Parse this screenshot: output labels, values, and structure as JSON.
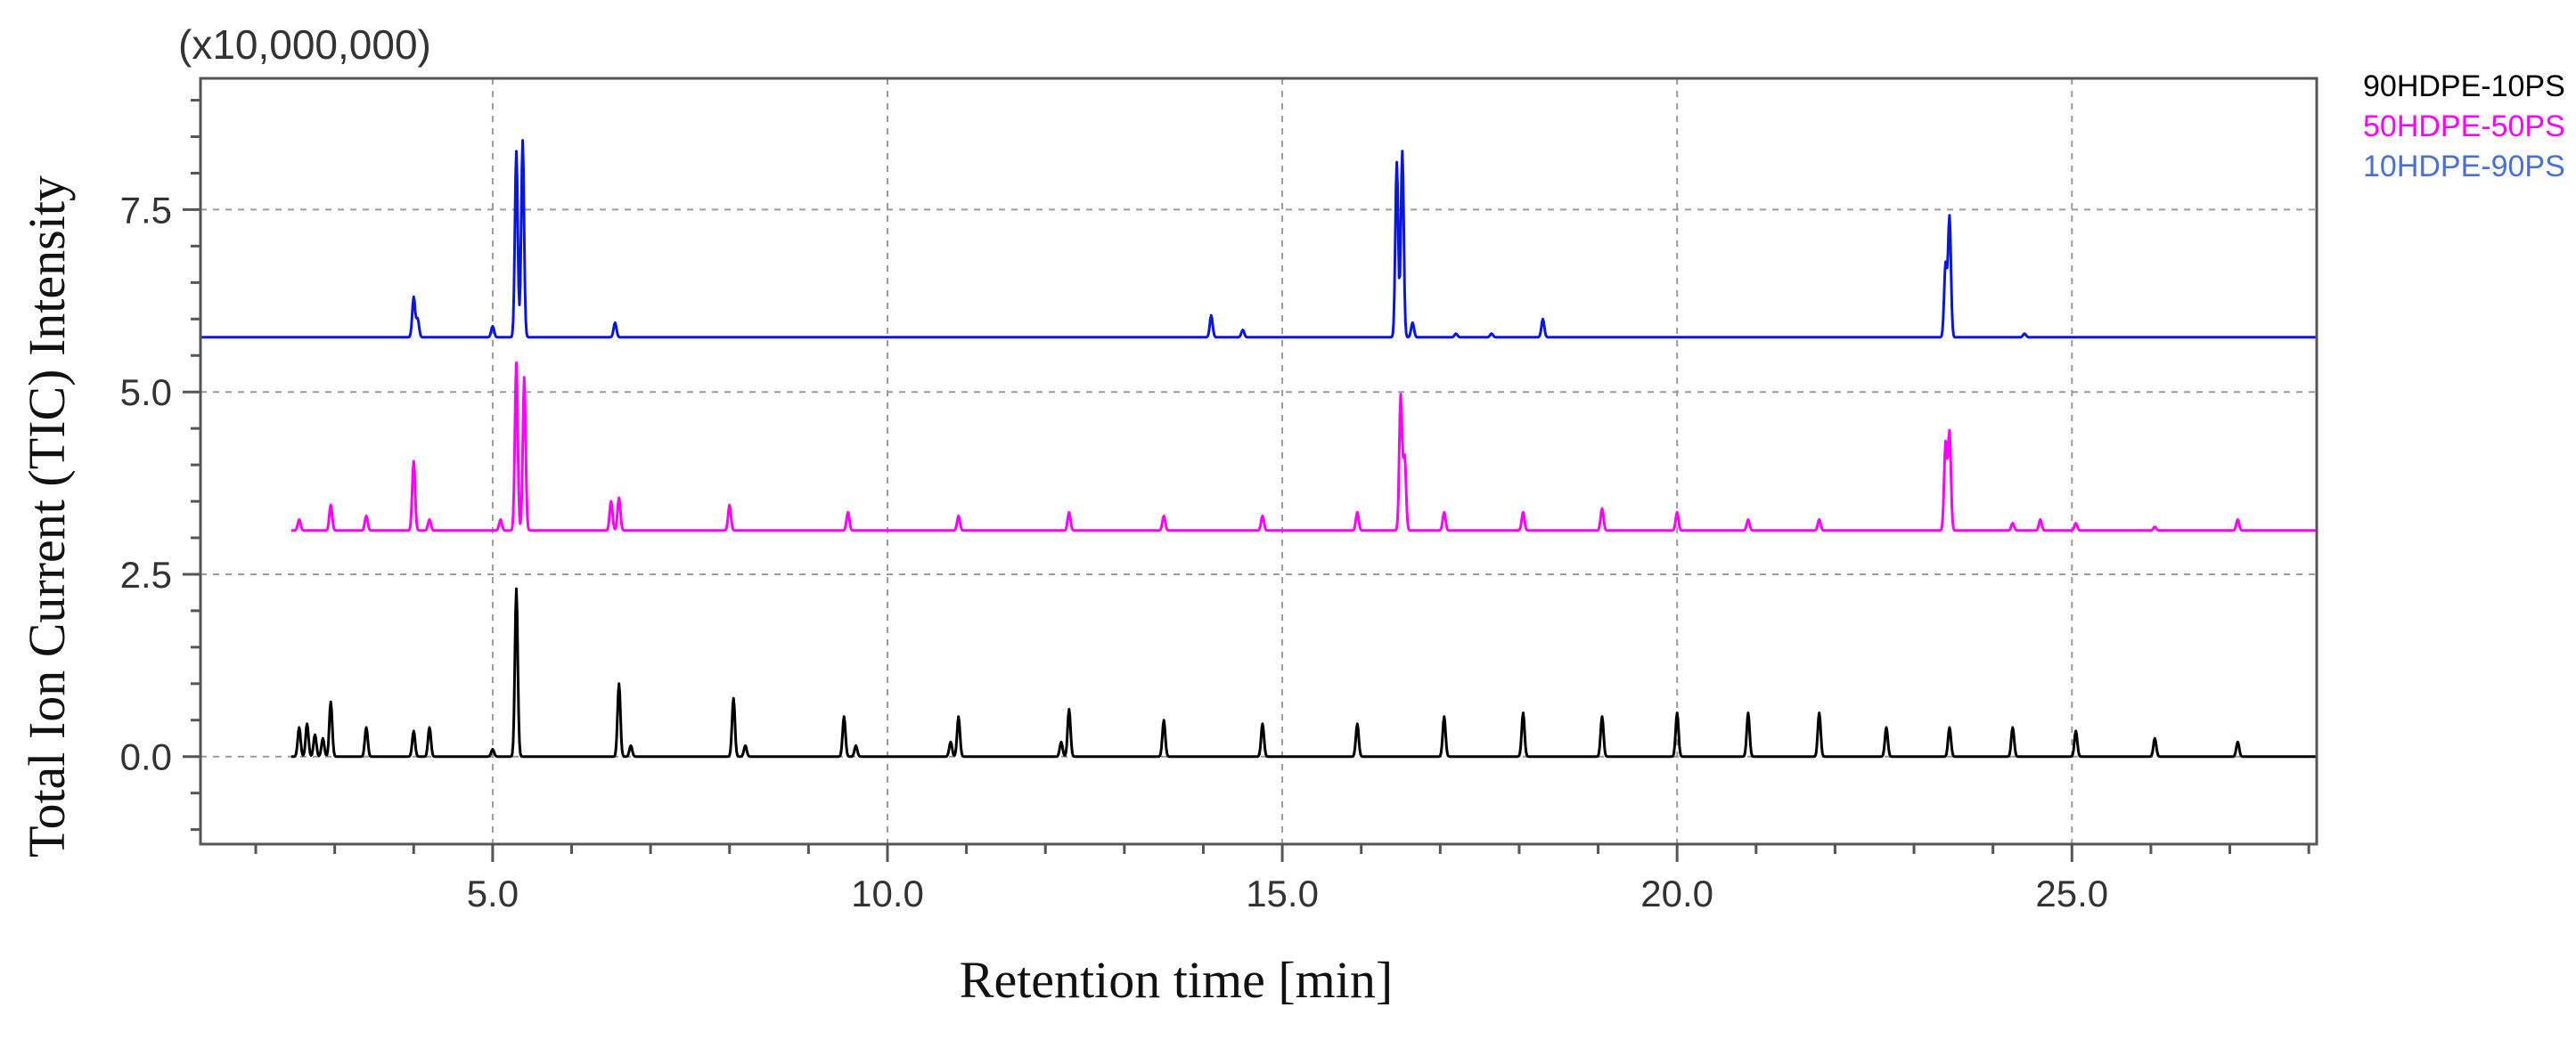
{
  "chart_data": {
    "type": "line",
    "title": "",
    "xlabel": "Retention time [min]",
    "ylabel": "Total Ion Current (TIC) Intensity",
    "y_multiplier_label": "(x10,000,000)",
    "xlim": [
      1.3,
      28.1
    ],
    "ylim": [
      -1.2,
      9.3
    ],
    "x_ticks": [
      5.0,
      10.0,
      15.0,
      20.0,
      25.0
    ],
    "x_tick_labels": [
      "5.0",
      "10.0",
      "15.0",
      "20.0",
      "25.0"
    ],
    "y_ticks": [
      0.0,
      2.5,
      5.0,
      7.5
    ],
    "y_tick_labels": [
      "0.0",
      "2.5",
      "5.0",
      "7.5"
    ],
    "grid": true,
    "legend_position": "top-right",
    "series": [
      {
        "name": "90HDPE-10PS",
        "color": "#000000",
        "baseline": 0.0,
        "peaks": [
          {
            "x": 2.55,
            "h": 0.4
          },
          {
            "x": 2.65,
            "h": 0.45
          },
          {
            "x": 2.75,
            "h": 0.3
          },
          {
            "x": 2.85,
            "h": 0.25
          },
          {
            "x": 2.95,
            "h": 0.75
          },
          {
            "x": 3.4,
            "h": 0.4
          },
          {
            "x": 4.0,
            "h": 0.35
          },
          {
            "x": 4.2,
            "h": 0.4
          },
          {
            "x": 5.0,
            "h": 0.1
          },
          {
            "x": 5.3,
            "h": 2.3
          },
          {
            "x": 6.6,
            "h": 1.0
          },
          {
            "x": 6.75,
            "h": 0.15
          },
          {
            "x": 8.05,
            "h": 0.8
          },
          {
            "x": 8.2,
            "h": 0.15
          },
          {
            "x": 9.45,
            "h": 0.55
          },
          {
            "x": 9.6,
            "h": 0.15
          },
          {
            "x": 10.8,
            "h": 0.2
          },
          {
            "x": 10.9,
            "h": 0.55
          },
          {
            "x": 12.2,
            "h": 0.2
          },
          {
            "x": 12.3,
            "h": 0.65
          },
          {
            "x": 13.5,
            "h": 0.5
          },
          {
            "x": 14.75,
            "h": 0.45
          },
          {
            "x": 15.95,
            "h": 0.45
          },
          {
            "x": 17.05,
            "h": 0.55
          },
          {
            "x": 18.05,
            "h": 0.6
          },
          {
            "x": 19.05,
            "h": 0.55
          },
          {
            "x": 20.0,
            "h": 0.6
          },
          {
            "x": 20.9,
            "h": 0.6
          },
          {
            "x": 21.8,
            "h": 0.6
          },
          {
            "x": 22.65,
            "h": 0.4
          },
          {
            "x": 23.45,
            "h": 0.4
          },
          {
            "x": 24.25,
            "h": 0.4
          },
          {
            "x": 25.05,
            "h": 0.35
          },
          {
            "x": 26.05,
            "h": 0.25
          },
          {
            "x": 27.1,
            "h": 0.2
          }
        ]
      },
      {
        "name": "50HDPE-50PS",
        "color": "#ff00ff",
        "baseline": 3.1,
        "peaks": [
          {
            "x": 2.55,
            "h": 0.15
          },
          {
            "x": 2.95,
            "h": 0.35
          },
          {
            "x": 3.4,
            "h": 0.2
          },
          {
            "x": 4.0,
            "h": 0.95
          },
          {
            "x": 4.2,
            "h": 0.15
          },
          {
            "x": 5.1,
            "h": 0.15
          },
          {
            "x": 5.3,
            "h": 2.3
          },
          {
            "x": 5.4,
            "h": 2.1
          },
          {
            "x": 6.5,
            "h": 0.4
          },
          {
            "x": 6.6,
            "h": 0.45
          },
          {
            "x": 8.0,
            "h": 0.35
          },
          {
            "x": 9.5,
            "h": 0.25
          },
          {
            "x": 10.9,
            "h": 0.2
          },
          {
            "x": 12.3,
            "h": 0.25
          },
          {
            "x": 13.5,
            "h": 0.2
          },
          {
            "x": 14.75,
            "h": 0.2
          },
          {
            "x": 15.95,
            "h": 0.25
          },
          {
            "x": 16.5,
            "h": 1.85
          },
          {
            "x": 16.55,
            "h": 1.0
          },
          {
            "x": 17.05,
            "h": 0.25
          },
          {
            "x": 18.05,
            "h": 0.25
          },
          {
            "x": 19.05,
            "h": 0.3
          },
          {
            "x": 20.0,
            "h": 0.25
          },
          {
            "x": 20.9,
            "h": 0.15
          },
          {
            "x": 21.8,
            "h": 0.15
          },
          {
            "x": 23.4,
            "h": 1.2
          },
          {
            "x": 23.45,
            "h": 1.35
          },
          {
            "x": 24.25,
            "h": 0.1
          },
          {
            "x": 24.6,
            "h": 0.15
          },
          {
            "x": 25.05,
            "h": 0.1
          },
          {
            "x": 26.05,
            "h": 0.05
          },
          {
            "x": 27.1,
            "h": 0.15
          }
        ]
      },
      {
        "name": "10HDPE-90PS",
        "color": "#4a6fd6",
        "line_color": "#0a16e0",
        "baseline": 5.75,
        "peaks": [
          {
            "x": 4.0,
            "h": 0.55
          },
          {
            "x": 4.05,
            "h": 0.25
          },
          {
            "x": 5.0,
            "h": 0.15
          },
          {
            "x": 5.3,
            "h": 2.55
          },
          {
            "x": 5.38,
            "h": 2.7
          },
          {
            "x": 6.55,
            "h": 0.2
          },
          {
            "x": 14.1,
            "h": 0.3
          },
          {
            "x": 14.5,
            "h": 0.1
          },
          {
            "x": 16.45,
            "h": 2.4
          },
          {
            "x": 16.52,
            "h": 2.55
          },
          {
            "x": 16.65,
            "h": 0.2
          },
          {
            "x": 17.2,
            "h": 0.05
          },
          {
            "x": 17.65,
            "h": 0.05
          },
          {
            "x": 18.3,
            "h": 0.25
          },
          {
            "x": 23.4,
            "h": 1.0
          },
          {
            "x": 23.45,
            "h": 1.65
          },
          {
            "x": 24.4,
            "h": 0.05
          }
        ]
      }
    ]
  }
}
